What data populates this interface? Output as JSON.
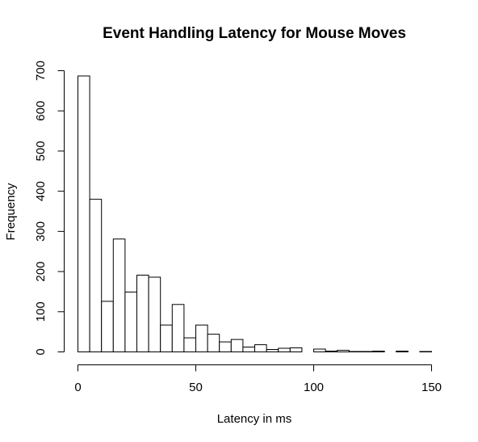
{
  "chart_data": {
    "type": "bar",
    "title": "Event Handling Latency for Mouse Moves",
    "xlabel": "Latency in ms",
    "ylabel": "Frequency",
    "xlim": [
      0,
      150
    ],
    "ylim": [
      0,
      700
    ],
    "x_ticks": [
      0,
      50,
      100,
      150
    ],
    "y_ticks": [
      0,
      100,
      200,
      300,
      400,
      500,
      600,
      700
    ],
    "bin_width": 5,
    "bin_starts": [
      0,
      5,
      10,
      15,
      20,
      25,
      30,
      35,
      40,
      45,
      50,
      55,
      60,
      65,
      70,
      75,
      80,
      85,
      90,
      95,
      100,
      105,
      110,
      115,
      120,
      125,
      130,
      135,
      140,
      145
    ],
    "values": [
      687,
      380,
      126,
      281,
      149,
      191,
      186,
      67,
      118,
      35,
      67,
      44,
      25,
      31,
      12,
      18,
      6,
      9,
      10,
      0,
      7,
      2,
      4,
      1,
      1,
      2,
      0,
      2,
      0,
      1
    ],
    "grid": false,
    "legend": "none"
  }
}
